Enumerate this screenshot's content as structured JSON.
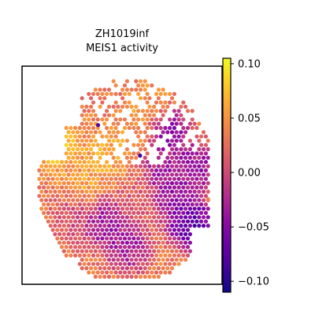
{
  "chart_data": {
    "type": "heatmap",
    "title": "ZH1019inf",
    "subtitle": "MEIS1 activity",
    "colormap": "plasma",
    "colorbar": {
      "range": [
        -0.11,
        0.105
      ],
      "ticks": [
        0.1,
        0.05,
        0.0,
        -0.05,
        -0.1
      ],
      "tick_labels": [
        "0.10",
        "0.05",
        "0.00",
        "−0.05",
        "−0.10"
      ]
    },
    "x_range": [
      0,
      1
    ],
    "y_range": [
      0,
      1
    ],
    "regions": [
      {
        "description": "bright yellow cluster",
        "x": 0.17,
        "y": 0.36,
        "value": 0.08
      },
      {
        "description": "bright yellow cluster",
        "x": 0.12,
        "y": 0.32,
        "value": 0.075
      },
      {
        "description": "yellow-orange region",
        "x": 0.42,
        "y": 0.4,
        "value": 0.065
      },
      {
        "description": "yellow-orange region",
        "x": 0.3,
        "y": 0.52,
        "value": 0.06
      },
      {
        "description": "yellow-orange region",
        "x": 0.58,
        "y": 0.28,
        "value": 0.055
      },
      {
        "description": "yellow-orange region",
        "x": 0.65,
        "y": 0.16,
        "value": 0.05
      },
      {
        "description": "purple patch",
        "x": 0.42,
        "y": 0.72,
        "value": -0.05
      },
      {
        "description": "dark purple patch",
        "x": 0.84,
        "y": 0.72,
        "value": -0.09
      },
      {
        "description": "purple patch",
        "x": 0.77,
        "y": 0.6,
        "value": -0.05
      },
      {
        "description": "purple patch",
        "x": 0.72,
        "y": 0.48,
        "value": -0.04
      },
      {
        "description": "purple patch",
        "x": 0.72,
        "y": 0.3,
        "value": -0.06
      },
      {
        "description": "purple patch",
        "x": 0.86,
        "y": 0.46,
        "value": -0.05
      },
      {
        "description": "purple patch",
        "x": 0.53,
        "y": 0.82,
        "value": -0.04
      },
      {
        "description": "pink region",
        "x": 0.55,
        "y": 0.65,
        "value": 0.01
      },
      {
        "description": "pink region",
        "x": 0.26,
        "y": 0.7,
        "value": 0.0
      }
    ]
  }
}
